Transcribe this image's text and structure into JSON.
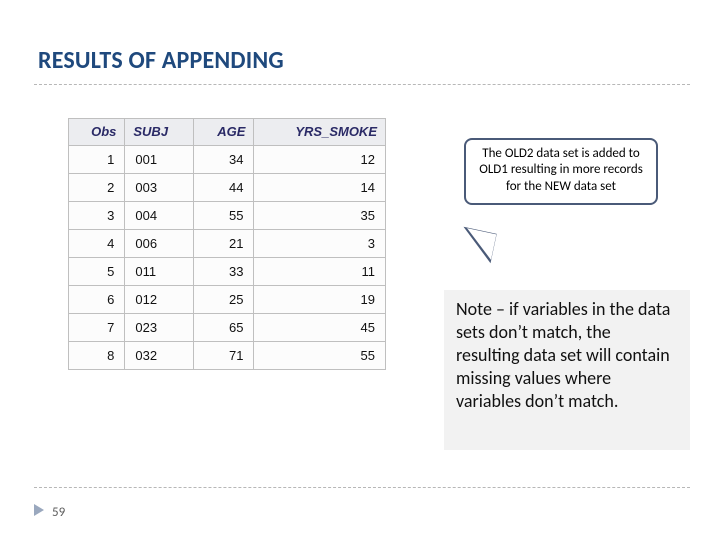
{
  "title": "RESULTS OF APPENDING",
  "page_number": "59",
  "callout": {
    "text": "The OLD2 data set is added to OLD1 resulting in more records for the NEW data set",
    "border_color": "#4a5a78",
    "bg_color": "#ffffff",
    "font_size_pt": 13
  },
  "note": {
    "text": "Note – if variables in the data sets don’t match, the resulting data set will contain missing values where variables don’t match.",
    "bg_color": "#f2f2f2",
    "font_size_pt": 18
  },
  "table": {
    "type": "table",
    "header_bg": "#ecedf0",
    "header_fg": "#2a2a66",
    "border_color": "#bfbfbf",
    "cell_fontsize": 13,
    "columns": [
      {
        "label": "Obs",
        "align": "right"
      },
      {
        "label": "SUBJ",
        "align": "left"
      },
      {
        "label": "AGE",
        "align": "right"
      },
      {
        "label": "YRS_SMOKE",
        "align": "right"
      }
    ],
    "rows": [
      [
        "1",
        "001",
        "34",
        "12"
      ],
      [
        "2",
        "003",
        "44",
        "14"
      ],
      [
        "3",
        "004",
        "55",
        "35"
      ],
      [
        "4",
        "006",
        "21",
        "3"
      ],
      [
        "5",
        "011",
        "33",
        "11"
      ],
      [
        "6",
        "012",
        "25",
        "19"
      ],
      [
        "7",
        "023",
        "65",
        "45"
      ],
      [
        "8",
        "032",
        "71",
        "55"
      ]
    ]
  },
  "colors": {
    "title": "#1f497d",
    "rule": "#b7b7b7",
    "arrow": "#9aa8be",
    "page_bg": "#ffffff"
  }
}
